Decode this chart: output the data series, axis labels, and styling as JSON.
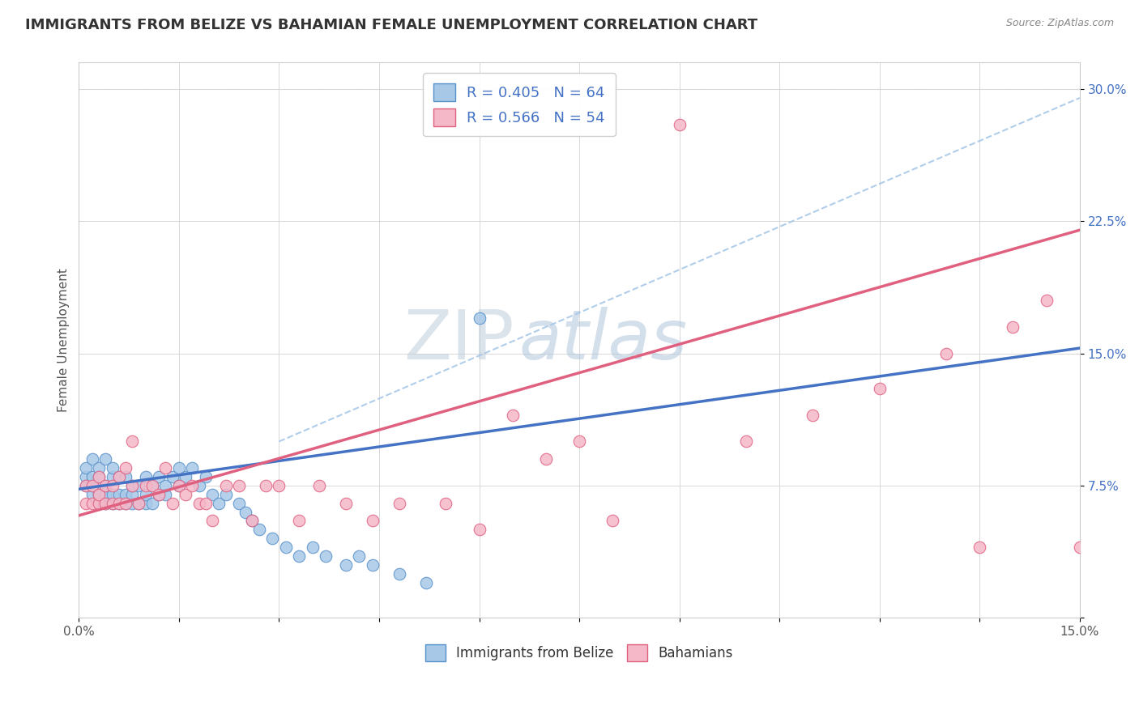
{
  "title": "IMMIGRANTS FROM BELIZE VS BAHAMIAN FEMALE UNEMPLOYMENT CORRELATION CHART",
  "source_text": "Source: ZipAtlas.com",
  "ylabel": "Female Unemployment",
  "xlim": [
    0.0,
    0.15
  ],
  "ylim": [
    0.0,
    0.315
  ],
  "xticks": [
    0.0,
    0.015,
    0.03,
    0.045,
    0.06,
    0.075,
    0.09,
    0.105,
    0.12,
    0.135,
    0.15
  ],
  "xticklabels": [
    "0.0%",
    "",
    "",
    "",
    "",
    "",
    "",
    "",
    "",
    "",
    "15.0%"
  ],
  "yticks": [
    0.0,
    0.075,
    0.15,
    0.225,
    0.3
  ],
  "yticklabels": [
    "",
    "7.5%",
    "15.0%",
    "22.5%",
    "30.0%"
  ],
  "R1": 0.405,
  "N1": 64,
  "R2": 0.566,
  "N2": 54,
  "series1_color": "#a8c8e8",
  "series1_edge": "#5590c8",
  "series2_color": "#f5b8c8",
  "series2_edge": "#e06080",
  "trendline1_color": "#4472c4",
  "trendline2_color": "#e06080",
  "dash_color": "#a8c8e8",
  "watermark_zip": "ZIP",
  "watermark_atlas": "atlas",
  "background_color": "#ffffff",
  "grid_color": "#d8d8d8",
  "blue_points_x": [
    0.001,
    0.001,
    0.001,
    0.002,
    0.002,
    0.002,
    0.002,
    0.003,
    0.003,
    0.003,
    0.003,
    0.004,
    0.004,
    0.004,
    0.004,
    0.005,
    0.005,
    0.005,
    0.005,
    0.006,
    0.006,
    0.006,
    0.007,
    0.007,
    0.007,
    0.008,
    0.008,
    0.008,
    0.009,
    0.009,
    0.01,
    0.01,
    0.01,
    0.011,
    0.011,
    0.012,
    0.012,
    0.013,
    0.013,
    0.014,
    0.015,
    0.015,
    0.016,
    0.017,
    0.018,
    0.019,
    0.02,
    0.021,
    0.022,
    0.024,
    0.025,
    0.026,
    0.027,
    0.029,
    0.031,
    0.033,
    0.035,
    0.037,
    0.04,
    0.042,
    0.044,
    0.048,
    0.052,
    0.06
  ],
  "blue_points_y": [
    0.075,
    0.08,
    0.085,
    0.07,
    0.075,
    0.08,
    0.09,
    0.065,
    0.07,
    0.08,
    0.085,
    0.065,
    0.07,
    0.075,
    0.09,
    0.065,
    0.07,
    0.08,
    0.085,
    0.065,
    0.07,
    0.08,
    0.065,
    0.07,
    0.08,
    0.065,
    0.07,
    0.075,
    0.065,
    0.075,
    0.065,
    0.07,
    0.08,
    0.065,
    0.075,
    0.07,
    0.08,
    0.07,
    0.075,
    0.08,
    0.075,
    0.085,
    0.08,
    0.085,
    0.075,
    0.08,
    0.07,
    0.065,
    0.07,
    0.065,
    0.06,
    0.055,
    0.05,
    0.045,
    0.04,
    0.035,
    0.04,
    0.035,
    0.03,
    0.035,
    0.03,
    0.025,
    0.02,
    0.17
  ],
  "pink_points_x": [
    0.001,
    0.001,
    0.002,
    0.002,
    0.003,
    0.003,
    0.003,
    0.004,
    0.004,
    0.005,
    0.005,
    0.006,
    0.006,
    0.007,
    0.007,
    0.008,
    0.008,
    0.009,
    0.01,
    0.011,
    0.012,
    0.013,
    0.014,
    0.015,
    0.016,
    0.017,
    0.018,
    0.019,
    0.02,
    0.022,
    0.024,
    0.026,
    0.028,
    0.03,
    0.033,
    0.036,
    0.04,
    0.044,
    0.048,
    0.055,
    0.06,
    0.065,
    0.07,
    0.075,
    0.08,
    0.09,
    0.1,
    0.11,
    0.12,
    0.13,
    0.135,
    0.14,
    0.145,
    0.15
  ],
  "pink_points_y": [
    0.065,
    0.075,
    0.065,
    0.075,
    0.065,
    0.07,
    0.08,
    0.065,
    0.075,
    0.065,
    0.075,
    0.065,
    0.08,
    0.065,
    0.085,
    0.075,
    0.1,
    0.065,
    0.075,
    0.075,
    0.07,
    0.085,
    0.065,
    0.075,
    0.07,
    0.075,
    0.065,
    0.065,
    0.055,
    0.075,
    0.075,
    0.055,
    0.075,
    0.075,
    0.055,
    0.075,
    0.065,
    0.055,
    0.065,
    0.065,
    0.05,
    0.115,
    0.09,
    0.1,
    0.055,
    0.28,
    0.1,
    0.115,
    0.13,
    0.15,
    0.04,
    0.165,
    0.18,
    0.04
  ]
}
